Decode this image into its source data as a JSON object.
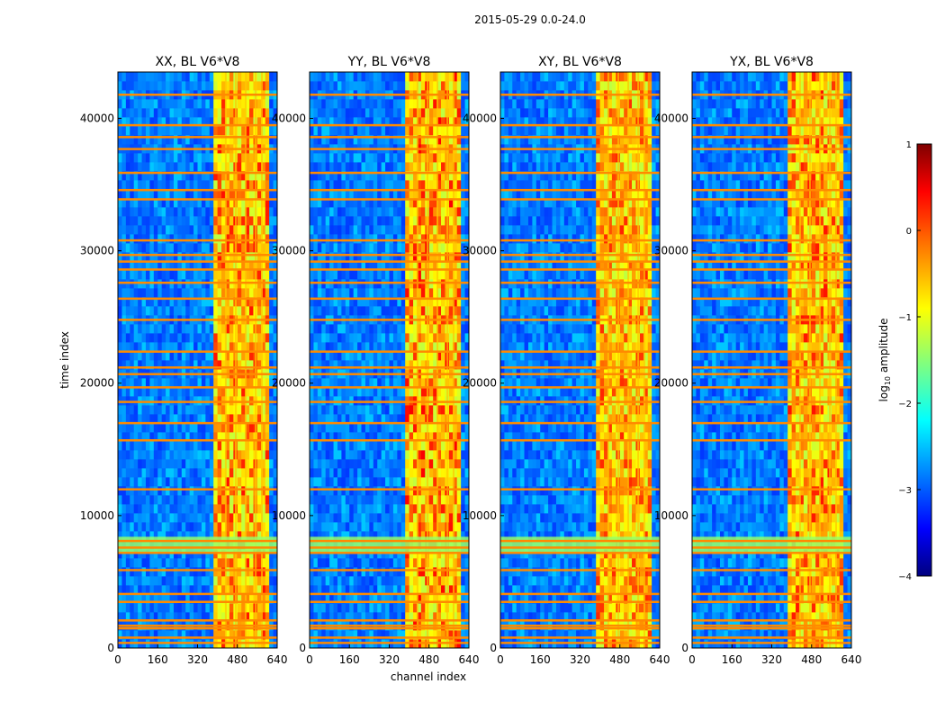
{
  "figure": {
    "suptitle": "2015-05-29 0.0-24.0"
  },
  "chart_data": [
    {
      "type": "heatmap",
      "title": "XX, BL V6*V8",
      "xlabel": "channel index",
      "ylabel": "time index",
      "xlim": [
        0,
        640
      ],
      "ylim": [
        0,
        43500
      ],
      "xticks": [
        0,
        160,
        320,
        480,
        640
      ],
      "yticks": [
        0,
        10000,
        20000,
        30000,
        40000
      ],
      "colormap": "jet",
      "value_range": [
        -4,
        1
      ],
      "band": {
        "start_channel": 390,
        "end_channel": 600,
        "peak_level": 0.3
      }
    },
    {
      "type": "heatmap",
      "title": "YY, BL V6*V8",
      "xlabel": "channel index",
      "ylabel": "",
      "xlim": [
        0,
        640
      ],
      "ylim": [
        0,
        43500
      ],
      "xticks": [
        0,
        160,
        320,
        480,
        640
      ],
      "yticks": [
        0,
        10000,
        20000,
        30000,
        40000
      ],
      "colormap": "jet",
      "value_range": [
        -4,
        1
      ],
      "band": {
        "start_channel": 390,
        "end_channel": 600,
        "peak_level": 0.4
      }
    },
    {
      "type": "heatmap",
      "title": "XY, BL V6*V8",
      "xlabel": "channel index",
      "ylabel": "",
      "xlim": [
        0,
        640
      ],
      "ylim": [
        0,
        43500
      ],
      "xticks": [
        0,
        160,
        320,
        480,
        640
      ],
      "yticks": [
        0,
        10000,
        20000,
        30000,
        40000
      ],
      "colormap": "jet",
      "value_range": [
        -4,
        1
      ],
      "band": {
        "start_channel": 390,
        "end_channel": 600,
        "peak_level": 0.2
      }
    },
    {
      "type": "heatmap",
      "title": "YX, BL V6*V8",
      "xlabel": "channel index",
      "ylabel": "",
      "xlim": [
        0,
        640
      ],
      "ylim": [
        0,
        43500
      ],
      "xticks": [
        0,
        160,
        320,
        480,
        640
      ],
      "yticks": [
        0,
        10000,
        20000,
        30000,
        40000
      ],
      "colormap": "jet",
      "value_range": [
        -4,
        1
      ],
      "band": {
        "start_channel": 390,
        "end_channel": 600,
        "peak_level": 0.3
      }
    }
  ],
  "colorbar": {
    "label_prefix": "log",
    "label_sub": "10",
    "label_suffix": " amplitude",
    "ticks": [
      {
        "value": 1,
        "label": "1"
      },
      {
        "value": 0,
        "label": "0"
      },
      {
        "value": -1,
        "label": "−1"
      },
      {
        "value": -2,
        "label": "−2"
      },
      {
        "value": -3,
        "label": "−3"
      },
      {
        "value": -4,
        "label": "−4"
      }
    ],
    "min": -4,
    "max": 1
  },
  "flagged_rows": {
    "orange_time_index": [
      400,
      800,
      1500,
      1700,
      2100,
      3500,
      4100,
      5900,
      7200,
      7600,
      8100,
      12000,
      15700,
      17000,
      18600,
      19700,
      20700,
      21200,
      22400,
      24800,
      26400,
      27600,
      28600,
      29200,
      29700,
      30800,
      33900,
      34600,
      35900,
      37700,
      38600,
      39500,
      41800
    ],
    "bright_band_time_index": [
      7200,
      8400
    ]
  }
}
